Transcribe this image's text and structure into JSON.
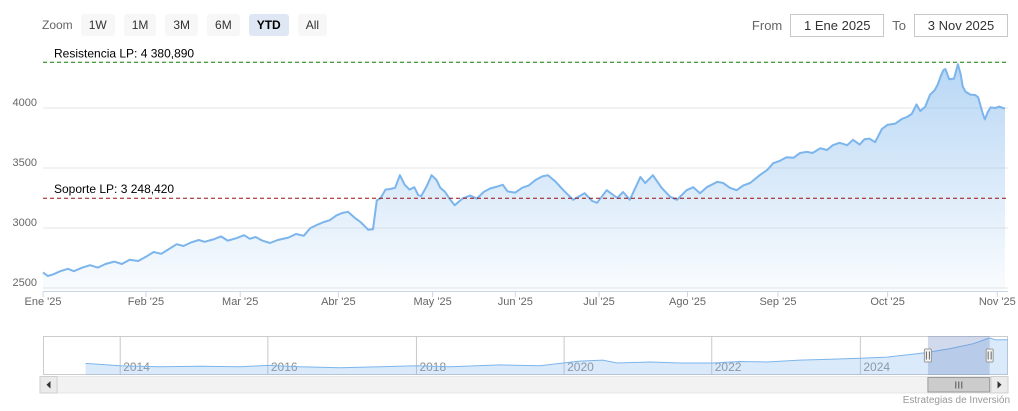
{
  "chart": {
    "zoom_label": "Zoom",
    "buttons": [
      {
        "label": "1W",
        "selected": false
      },
      {
        "label": "1M",
        "selected": false
      },
      {
        "label": "3M",
        "selected": false
      },
      {
        "label": "6M",
        "selected": false
      },
      {
        "label": "YTD",
        "selected": true
      },
      {
        "label": "All",
        "selected": false
      }
    ],
    "from_label": "From",
    "from_value": "1 Ene 2025",
    "to_label": "To",
    "to_value": "3 Nov 2025",
    "credit": "Estrategias de Inversión"
  },
  "colors": {
    "series": "#7cb5ec",
    "series_fill_top": "rgba(124,181,236,0.55)",
    "series_fill_bottom": "rgba(124,181,236,0.04)",
    "grid": "#e6e6e6",
    "axis_line": "#ccd6eb",
    "axis_label": "#666666",
    "resistance": "#0a7d00",
    "support": "#9a1010",
    "annotation_text": "#000000",
    "selected_button_bg": "#e0e7f4",
    "button_bg": "#f7f7f7",
    "nav_mask": "rgba(102,133,194,0.3)",
    "nav_grid": "#c8c8c8",
    "nav_label": "#8f8f8f",
    "scrollbar_track": "#f2f2f2",
    "scrollbar_thumb": "#cccccc"
  },
  "annotations": [
    {
      "id": "resistance",
      "label": "Resistencia LP: 4 380,890",
      "value": 4380.89
    },
    {
      "id": "support",
      "label": "Soporte LP: 3 248,420",
      "value": 3248.42
    }
  ],
  "chart_data": {
    "type": "area",
    "title": "",
    "xlabel": "",
    "ylabel": "",
    "x_range_labels": [
      "1 Ene 2025",
      "3 Nov 2025"
    ],
    "note": "t = fraction of the visible date range (1 Ene 2025 .. 3 Nov 2025)",
    "y_axis": {
      "ticks": [
        2500,
        3000,
        3500,
        4000
      ],
      "min": 2475,
      "max": 4550
    },
    "x_axis": {
      "ticks": [
        {
          "label": "Ene '25",
          "t": 0.0
        },
        {
          "label": "Feb '25",
          "t": 0.107
        },
        {
          "label": "Mar '25",
          "t": 0.205
        },
        {
          "label": "Abr '25",
          "t": 0.307
        },
        {
          "label": "May '25",
          "t": 0.405
        },
        {
          "label": "Jun '25",
          "t": 0.491
        },
        {
          "label": "Jul '25",
          "t": 0.578
        },
        {
          "label": "Ago '25",
          "t": 0.67
        },
        {
          "label": "Sep '25",
          "t": 0.764
        },
        {
          "label": "Oct '25",
          "t": 0.878
        },
        {
          "label": "Nov '25",
          "t": 0.992
        }
      ]
    },
    "grid": true,
    "legend": false,
    "series": [
      {
        "name": "price",
        "points": [
          [
            0,
            2630
          ],
          [
            0.005,
            2600
          ],
          [
            0.011,
            2615
          ],
          [
            0.018,
            2640
          ],
          [
            0.026,
            2660
          ],
          [
            0.032,
            2640
          ],
          [
            0.041,
            2670
          ],
          [
            0.049,
            2690
          ],
          [
            0.057,
            2670
          ],
          [
            0.065,
            2700
          ],
          [
            0.074,
            2720
          ],
          [
            0.082,
            2700
          ],
          [
            0.09,
            2735
          ],
          [
            0.099,
            2725
          ],
          [
            0.107,
            2760
          ],
          [
            0.115,
            2800
          ],
          [
            0.123,
            2785
          ],
          [
            0.131,
            2825
          ],
          [
            0.139,
            2865
          ],
          [
            0.146,
            2850
          ],
          [
            0.154,
            2880
          ],
          [
            0.162,
            2900
          ],
          [
            0.168,
            2885
          ],
          [
            0.177,
            2905
          ],
          [
            0.185,
            2930
          ],
          [
            0.192,
            2895
          ],
          [
            0.201,
            2915
          ],
          [
            0.209,
            2940
          ],
          [
            0.215,
            2910
          ],
          [
            0.221,
            2925
          ],
          [
            0.228,
            2895
          ],
          [
            0.236,
            2875
          ],
          [
            0.244,
            2900
          ],
          [
            0.255,
            2920
          ],
          [
            0.263,
            2950
          ],
          [
            0.271,
            2935
          ],
          [
            0.278,
            3000
          ],
          [
            0.286,
            3030
          ],
          [
            0.292,
            3050
          ],
          [
            0.298,
            3065
          ],
          [
            0.305,
            3105
          ],
          [
            0.311,
            3125
          ],
          [
            0.317,
            3135
          ],
          [
            0.324,
            3085
          ],
          [
            0.33,
            3050
          ],
          [
            0.335,
            3010
          ],
          [
            0.338,
            2985
          ],
          [
            0.343,
            2990
          ],
          [
            0.347,
            3230
          ],
          [
            0.351,
            3250
          ],
          [
            0.356,
            3320
          ],
          [
            0.361,
            3325
          ],
          [
            0.366,
            3335
          ],
          [
            0.371,
            3440
          ],
          [
            0.376,
            3360
          ],
          [
            0.381,
            3320
          ],
          [
            0.386,
            3340
          ],
          [
            0.39,
            3275
          ],
          [
            0.393,
            3265
          ],
          [
            0.399,
            3350
          ],
          [
            0.404,
            3440
          ],
          [
            0.409,
            3400
          ],
          [
            0.413,
            3335
          ],
          [
            0.418,
            3300
          ],
          [
            0.423,
            3240
          ],
          [
            0.428,
            3190
          ],
          [
            0.436,
            3245
          ],
          [
            0.444,
            3270
          ],
          [
            0.451,
            3245
          ],
          [
            0.458,
            3300
          ],
          [
            0.465,
            3330
          ],
          [
            0.472,
            3345
          ],
          [
            0.478,
            3360
          ],
          [
            0.483,
            3305
          ],
          [
            0.491,
            3295
          ],
          [
            0.498,
            3335
          ],
          [
            0.505,
            3355
          ],
          [
            0.512,
            3400
          ],
          [
            0.519,
            3430
          ],
          [
            0.525,
            3440
          ],
          [
            0.533,
            3385
          ],
          [
            0.541,
            3315
          ],
          [
            0.551,
            3235
          ],
          [
            0.563,
            3290
          ],
          [
            0.571,
            3225
          ],
          [
            0.576,
            3210
          ],
          [
            0.586,
            3315
          ],
          [
            0.597,
            3250
          ],
          [
            0.603,
            3300
          ],
          [
            0.61,
            3235
          ],
          [
            0.621,
            3425
          ],
          [
            0.626,
            3375
          ],
          [
            0.634,
            3440
          ],
          [
            0.643,
            3335
          ],
          [
            0.652,
            3260
          ],
          [
            0.659,
            3235
          ],
          [
            0.669,
            3315
          ],
          [
            0.676,
            3340
          ],
          [
            0.683,
            3290
          ],
          [
            0.69,
            3340
          ],
          [
            0.701,
            3385
          ],
          [
            0.707,
            3375
          ],
          [
            0.714,
            3335
          ],
          [
            0.721,
            3315
          ],
          [
            0.728,
            3355
          ],
          [
            0.735,
            3375
          ],
          [
            0.745,
            3440
          ],
          [
            0.753,
            3485
          ],
          [
            0.759,
            3540
          ],
          [
            0.766,
            3560
          ],
          [
            0.773,
            3590
          ],
          [
            0.78,
            3585
          ],
          [
            0.787,
            3625
          ],
          [
            0.794,
            3635
          ],
          [
            0.8,
            3625
          ],
          [
            0.808,
            3665
          ],
          [
            0.815,
            3650
          ],
          [
            0.821,
            3690
          ],
          [
            0.828,
            3710
          ],
          [
            0.836,
            3690
          ],
          [
            0.842,
            3735
          ],
          [
            0.849,
            3695
          ],
          [
            0.854,
            3740
          ],
          [
            0.859,
            3745
          ],
          [
            0.865,
            3715
          ],
          [
            0.872,
            3825
          ],
          [
            0.878,
            3860
          ],
          [
            0.886,
            3870
          ],
          [
            0.893,
            3910
          ],
          [
            0.898,
            3925
          ],
          [
            0.903,
            3950
          ],
          [
            0.908,
            4030
          ],
          [
            0.912,
            3975
          ],
          [
            0.917,
            4010
          ],
          [
            0.922,
            4110
          ],
          [
            0.927,
            4150
          ],
          [
            0.93,
            4195
          ],
          [
            0.933,
            4260
          ],
          [
            0.936,
            4315
          ],
          [
            0.938,
            4325
          ],
          [
            0.942,
            4240
          ],
          [
            0.947,
            4245
          ],
          [
            0.951,
            4365
          ],
          [
            0.954,
            4280
          ],
          [
            0.956,
            4180
          ],
          [
            0.959,
            4135
          ],
          [
            0.964,
            4112
          ],
          [
            0.969,
            4108
          ],
          [
            0.972,
            4090
          ],
          [
            0.974,
            4035
          ],
          [
            0.977,
            3950
          ],
          [
            0.979,
            3905
          ],
          [
            0.982,
            3965
          ],
          [
            0.985,
            4005
          ],
          [
            0.99,
            4000
          ],
          [
            0.994,
            4012
          ],
          [
            0.998,
            4000
          ],
          [
            1,
            3996
          ]
        ]
      }
    ],
    "navigator": {
      "note": "t = fraction of full history axis (2013 .. late 2025)",
      "min": 450,
      "max": 4430,
      "selection": [
        0.917,
        0.981
      ],
      "year_ticks": [
        {
          "label": "2014",
          "t": 0.08
        },
        {
          "label": "2016",
          "t": 0.233
        },
        {
          "label": "2018",
          "t": 0.387
        },
        {
          "label": "2020",
          "t": 0.54
        },
        {
          "label": "2022",
          "t": 0.693
        },
        {
          "label": "2024",
          "t": 0.847
        }
      ],
      "points": [
        [
          0.044,
          1660
        ],
        [
          0.08,
          1410
        ],
        [
          0.121,
          1310
        ],
        [
          0.163,
          1360
        ],
        [
          0.204,
          1310
        ],
        [
          0.233,
          1460
        ],
        [
          0.266,
          1310
        ],
        [
          0.308,
          1210
        ],
        [
          0.349,
          1310
        ],
        [
          0.387,
          1410
        ],
        [
          0.422,
          1310
        ],
        [
          0.474,
          1510
        ],
        [
          0.515,
          1410
        ],
        [
          0.539,
          1710
        ],
        [
          0.556,
          1910
        ],
        [
          0.58,
          2010
        ],
        [
          0.595,
          1710
        ],
        [
          0.629,
          1810
        ],
        [
          0.66,
          1710
        ],
        [
          0.694,
          1710
        ],
        [
          0.722,
          1860
        ],
        [
          0.75,
          1810
        ],
        [
          0.784,
          2010
        ],
        [
          0.816,
          2110
        ],
        [
          0.847,
          2210
        ],
        [
          0.875,
          2320
        ],
        [
          0.901,
          2620
        ],
        [
          0.917,
          2820
        ],
        [
          0.94,
          3220
        ],
        [
          0.964,
          3730
        ],
        [
          0.978,
          4230
        ],
        [
          0.981,
          4330
        ],
        [
          0.987,
          4130
        ],
        [
          0.997,
          4140
        ],
        [
          1,
          4135
        ]
      ]
    }
  }
}
